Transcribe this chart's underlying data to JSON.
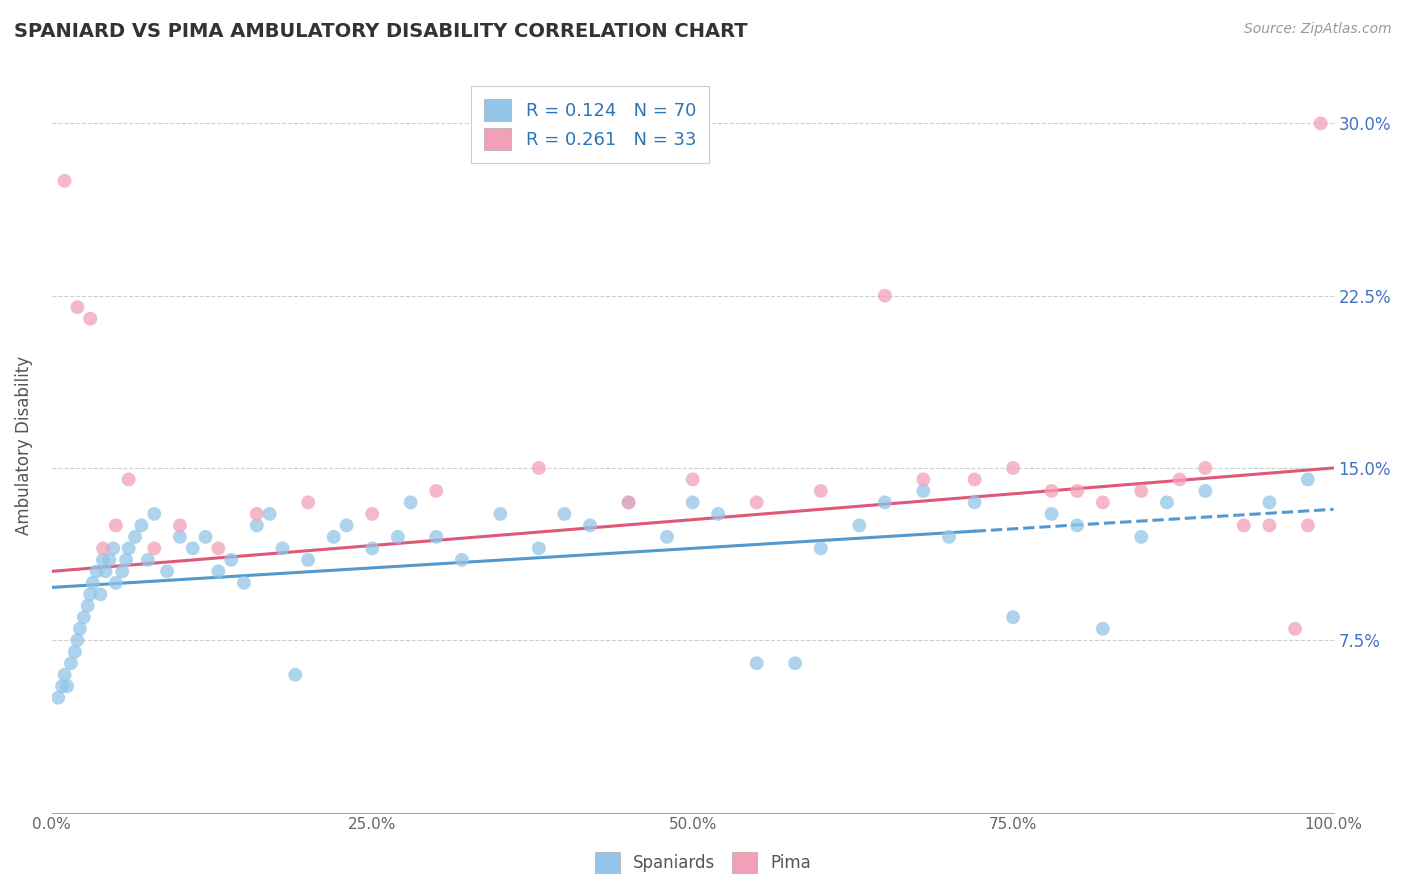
{
  "title": "SPANIARD VS PIMA AMBULATORY DISABILITY CORRELATION CHART",
  "source": "Source: ZipAtlas.com",
  "ylabel": "Ambulatory Disability",
  "legend_spaniards": "R = 0.124   N = 70",
  "legend_pima": "R = 0.261   N = 33",
  "spaniard_color": "#92C5E8",
  "pima_color": "#F2A0B8",
  "trend_spaniard_color": "#5599CC",
  "trend_pima_color": "#E05878",
  "background_color": "#FFFFFF",
  "grid_color": "#BBBBBB",
  "xlim": [
    0,
    100
  ],
  "ylim": [
    0,
    32
  ],
  "ytick_vals": [
    7.5,
    15.0,
    22.5,
    30.0
  ],
  "ytick_labels": [
    "7.5%",
    "15.0%",
    "22.5%",
    "30.0%"
  ],
  "xtick_vals": [
    0,
    25,
    50,
    75,
    100
  ],
  "xtick_labels": [
    "0.0%",
    "25.0%",
    "50.0%",
    "75.0%",
    "100.0%"
  ],
  "spaniards_x": [
    0.5,
    0.8,
    1.0,
    1.2,
    1.5,
    1.8,
    2.0,
    2.2,
    2.5,
    2.8,
    3.0,
    3.2,
    3.5,
    3.8,
    4.0,
    4.2,
    4.5,
    4.8,
    5.0,
    5.5,
    5.8,
    6.0,
    6.5,
    7.0,
    7.5,
    8.0,
    9.0,
    10.0,
    11.0,
    12.0,
    13.0,
    14.0,
    15.0,
    16.0,
    17.0,
    18.0,
    19.0,
    20.0,
    22.0,
    23.0,
    25.0,
    27.0,
    28.0,
    30.0,
    32.0,
    35.0,
    38.0,
    40.0,
    42.0,
    45.0,
    48.0,
    50.0,
    52.0,
    55.0,
    58.0,
    60.0,
    63.0,
    65.0,
    68.0,
    70.0,
    72.0,
    75.0,
    78.0,
    80.0,
    82.0,
    85.0,
    87.0,
    90.0,
    95.0,
    98.0
  ],
  "spaniards_y": [
    5.0,
    5.5,
    6.0,
    5.5,
    6.5,
    7.0,
    7.5,
    8.0,
    8.5,
    9.0,
    9.5,
    10.0,
    10.5,
    9.5,
    11.0,
    10.5,
    11.0,
    11.5,
    10.0,
    10.5,
    11.0,
    11.5,
    12.0,
    12.5,
    11.0,
    13.0,
    10.5,
    12.0,
    11.5,
    12.0,
    10.5,
    11.0,
    10.0,
    12.5,
    13.0,
    11.5,
    6.0,
    11.0,
    12.0,
    12.5,
    11.5,
    12.0,
    13.5,
    12.0,
    11.0,
    13.0,
    11.5,
    13.0,
    12.5,
    13.5,
    12.0,
    13.5,
    13.0,
    6.5,
    6.5,
    11.5,
    12.5,
    13.5,
    14.0,
    12.0,
    13.5,
    8.5,
    13.0,
    12.5,
    8.0,
    12.0,
    13.5,
    14.0,
    13.5,
    14.5
  ],
  "pima_x": [
    1.0,
    2.0,
    3.0,
    4.0,
    5.0,
    6.0,
    8.0,
    10.0,
    13.0,
    16.0,
    20.0,
    25.0,
    30.0,
    38.0,
    45.0,
    50.0,
    55.0,
    60.0,
    65.0,
    68.0,
    72.0,
    75.0,
    78.0,
    80.0,
    82.0,
    85.0,
    88.0,
    90.0,
    93.0,
    95.0,
    97.0,
    98.0,
    99.0
  ],
  "pima_y": [
    27.5,
    22.0,
    21.5,
    11.5,
    12.5,
    14.5,
    11.5,
    12.5,
    11.5,
    13.0,
    13.5,
    13.0,
    14.0,
    15.0,
    13.5,
    14.5,
    13.5,
    14.0,
    22.5,
    14.5,
    14.5,
    15.0,
    14.0,
    14.0,
    13.5,
    14.0,
    14.5,
    15.0,
    12.5,
    12.5,
    8.0,
    12.5,
    30.0
  ],
  "trend_sp_x0": 0,
  "trend_sp_x1": 100,
  "trend_sp_y0": 9.8,
  "trend_sp_y1": 13.2,
  "trend_pm_x0": 0,
  "trend_pm_solid_x1": 82,
  "trend_pm_dashed_x1": 100,
  "trend_pm_y0": 10.5,
  "trend_pm_y1": 15.0,
  "trend_sp_dash_start": 72
}
